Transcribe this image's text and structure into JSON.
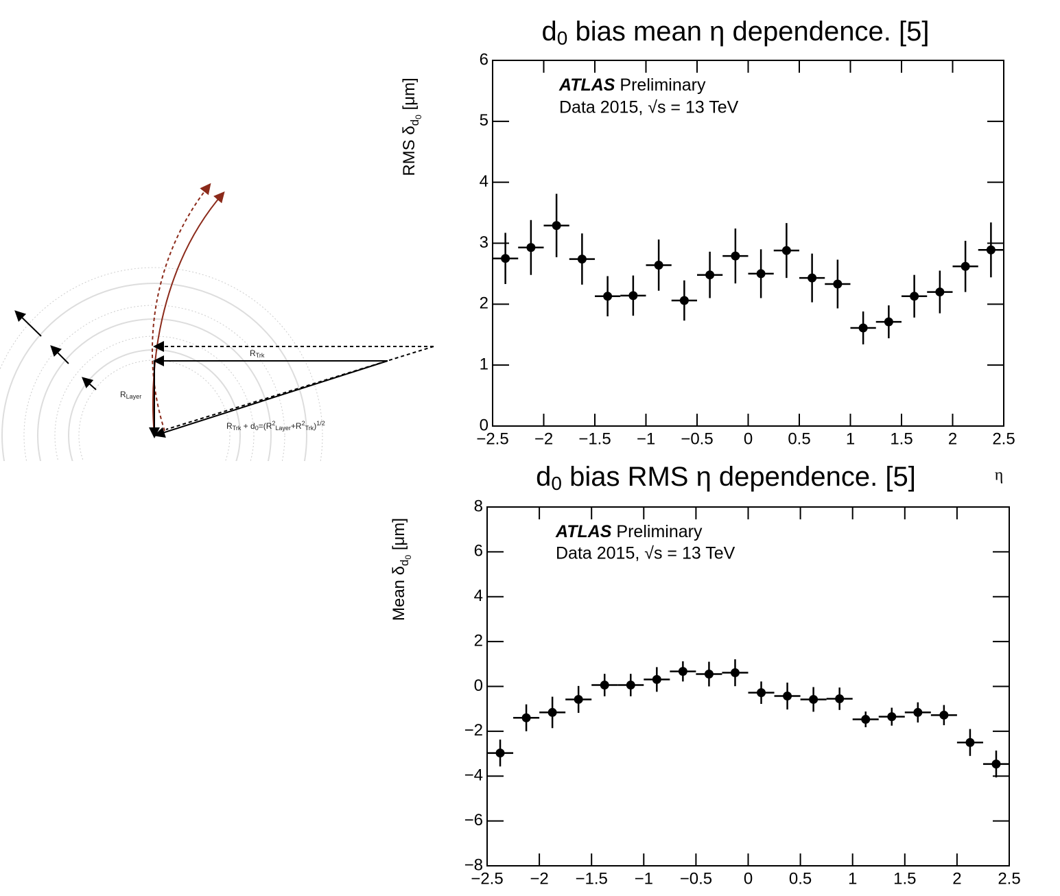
{
  "diagram": {
    "r_trk": [
      "R",
      "Trk"
    ],
    "r_layer": [
      "R",
      "Layer"
    ],
    "formula": [
      "R",
      "Trk",
      " + d",
      "0",
      "=(R",
      "2",
      "Layer",
      "+R",
      "2",
      "Trk",
      ")",
      "1/2"
    ]
  },
  "chart_data": [
    {
      "type": "errorbar",
      "title": [
        "d",
        "0",
        " bias mean η dependence. [5]"
      ],
      "y_label": [
        "RMS δ",
        "d",
        "0",
        " [μm]"
      ],
      "x_label": "η",
      "annotations": [
        "ATLAS",
        " Preliminary",
        "Data 2015, √s = 13 TeV"
      ],
      "x": [
        -2.375,
        -2.125,
        -1.875,
        -1.625,
        -1.375,
        -1.125,
        -0.875,
        -0.625,
        -0.375,
        -0.125,
        0.125,
        0.375,
        0.625,
        0.875,
        1.125,
        1.375,
        1.625,
        1.875,
        2.125,
        2.375
      ],
      "x_err": 0.125,
      "values": [
        2.75,
        2.93,
        3.29,
        2.74,
        2.13,
        2.14,
        2.64,
        2.06,
        2.48,
        2.79,
        2.5,
        2.88,
        2.43,
        2.33,
        1.61,
        1.71,
        2.13,
        2.2,
        2.62,
        2.89
      ],
      "errors": [
        0.42,
        0.45,
        0.52,
        0.42,
        0.33,
        0.33,
        0.42,
        0.33,
        0.38,
        0.45,
        0.4,
        0.45,
        0.4,
        0.4,
        0.27,
        0.27,
        0.35,
        0.35,
        0.42,
        0.45
      ],
      "color": "#000000",
      "xlim": [
        -2.5,
        2.5
      ],
      "ylim": [
        0,
        6
      ],
      "xticks": [
        {
          "value": -2.5,
          "label": "−2.5"
        },
        {
          "value": -2,
          "label": "−2"
        },
        {
          "value": -1.5,
          "label": "−1.5"
        },
        {
          "value": -1,
          "label": "−1"
        },
        {
          "value": -0.5,
          "label": "−0.5"
        },
        0,
        0.5,
        1,
        1.5,
        2,
        2.5
      ],
      "yticks": [
        0,
        1,
        2,
        3,
        4,
        5,
        6
      ]
    },
    {
      "type": "errorbar",
      "title": [
        "d",
        "0",
        " bias RMS η dependence. [5]"
      ],
      "y_label": [
        "Mean δ",
        "d",
        "0",
        " [μm]"
      ],
      "annotations": [
        "ATLAS",
        " Preliminary",
        "Data 2015, √s = 13 TeV"
      ],
      "x": [
        -2.375,
        -2.125,
        -1.875,
        -1.625,
        -1.375,
        -1.125,
        -0.875,
        -0.625,
        -0.375,
        -0.125,
        0.125,
        0.375,
        0.625,
        0.875,
        1.125,
        1.375,
        1.625,
        1.875,
        2.125,
        2.375
      ],
      "x_err": 0.125,
      "values": [
        -2.97,
        -1.4,
        -1.16,
        -0.58,
        0.06,
        0.06,
        0.31,
        0.67,
        0.55,
        0.61,
        -0.28,
        -0.43,
        -0.58,
        -0.55,
        -1.47,
        -1.35,
        -1.16,
        -1.28,
        -2.5,
        -3.46
      ],
      "errors": [
        0.6,
        0.6,
        0.7,
        0.6,
        0.5,
        0.5,
        0.55,
        0.45,
        0.55,
        0.6,
        0.5,
        0.6,
        0.55,
        0.5,
        0.35,
        0.4,
        0.45,
        0.45,
        0.6,
        0.6
      ],
      "color": "#000000",
      "xlim": [
        -2.5,
        2.5
      ],
      "ylim": [
        -8,
        8
      ],
      "xticks": [
        {
          "value": -2.5,
          "label": "−2.5"
        },
        {
          "value": -2,
          "label": "−2"
        },
        {
          "value": -1.5,
          "label": "−1.5"
        },
        {
          "value": -1,
          "label": "−1"
        },
        {
          "value": -0.5,
          "label": "−0.5"
        },
        0,
        0.5,
        1,
        1.5,
        2,
        2.5
      ],
      "yticks": [
        {
          "value": -8,
          "label": "−8"
        },
        {
          "value": -6,
          "label": "−6"
        },
        {
          "value": -4,
          "label": "−4"
        },
        {
          "value": -2,
          "label": "−2"
        },
        0,
        2,
        4,
        6,
        8
      ]
    }
  ]
}
